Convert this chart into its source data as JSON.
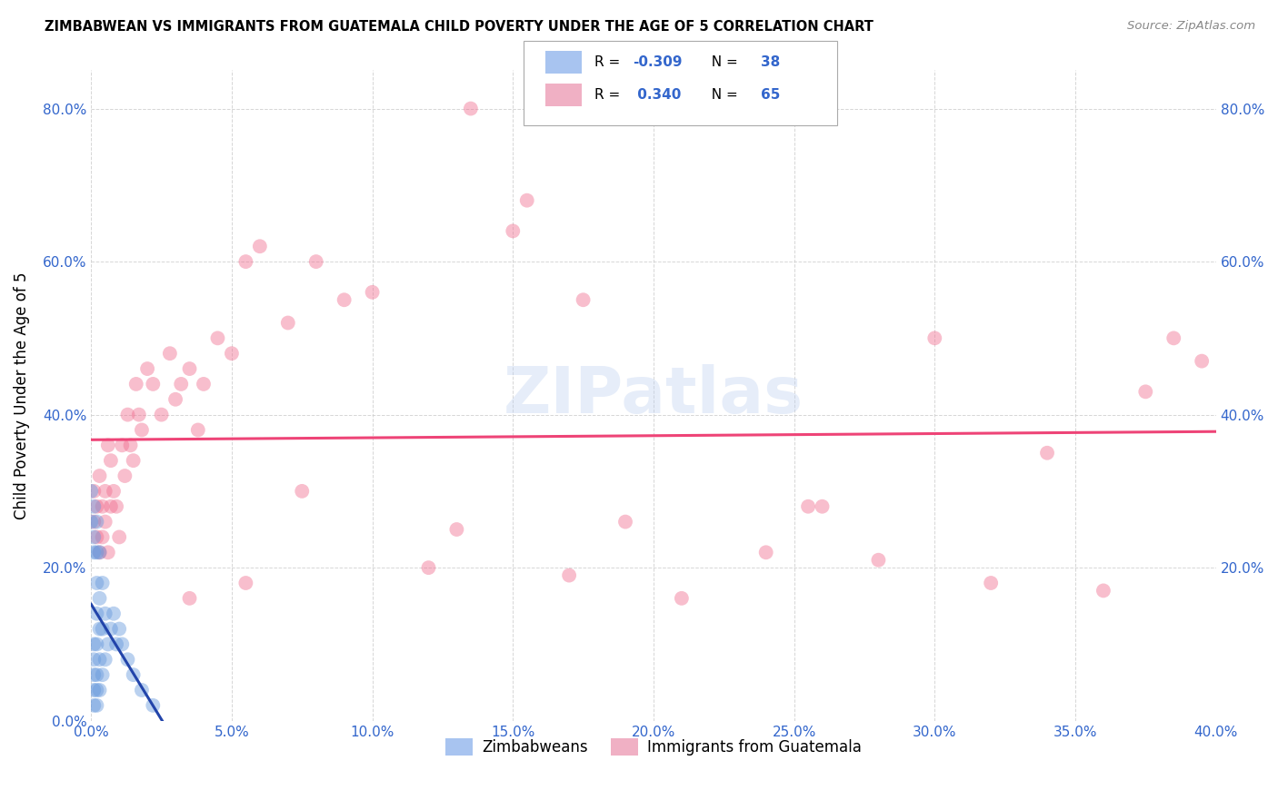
{
  "title": "ZIMBABWEAN VS IMMIGRANTS FROM GUATEMALA CHILD POVERTY UNDER THE AGE OF 5 CORRELATION CHART",
  "source": "Source: ZipAtlas.com",
  "ylabel": "Child Poverty Under the Age of 5",
  "xlim": [
    0.0,
    0.4
  ],
  "ylim": [
    0.0,
    0.85
  ],
  "xticks": [
    0.0,
    0.05,
    0.1,
    0.15,
    0.2,
    0.25,
    0.3,
    0.35,
    0.4
  ],
  "yticks": [
    0.0,
    0.2,
    0.4,
    0.6,
    0.8
  ],
  "xtick_labels": [
    "0.0%",
    "5.0%",
    "10.0%",
    "15.0%",
    "20.0%",
    "25.0%",
    "30.0%",
    "35.0%",
    "40.0%"
  ],
  "ytick_labels_left": [
    "0.0%",
    "20.0%",
    "40.0%",
    "60.0%",
    "80.0%"
  ],
  "ytick_labels_right": [
    "20.0%",
    "40.0%",
    "60.0%",
    "80.0%"
  ],
  "zim_color": "#6699dd",
  "guat_color": "#f07090",
  "zim_line_color": "#2244aa",
  "guat_line_color": "#ee4477",
  "watermark_text": "ZIPatlas",
  "background_color": "#ffffff",
  "grid_color": "#cccccc",
  "legend_labels_bottom": [
    "Zimbabweans",
    "Immigrants from Guatemala"
  ],
  "legend_blue_patch": "#a8c4f0",
  "legend_pink_patch": "#f0b0c4",
  "zim_x": [
    0.0,
    0.0,
    0.001,
    0.001,
    0.001,
    0.001,
    0.001,
    0.001,
    0.001,
    0.001,
    0.002,
    0.002,
    0.002,
    0.002,
    0.002,
    0.002,
    0.002,
    0.002,
    0.003,
    0.003,
    0.003,
    0.003,
    0.003,
    0.004,
    0.004,
    0.004,
    0.005,
    0.005,
    0.006,
    0.007,
    0.008,
    0.009,
    0.01,
    0.011,
    0.013,
    0.015,
    0.018,
    0.022
  ],
  "zim_y": [
    0.26,
    0.3,
    0.02,
    0.04,
    0.06,
    0.08,
    0.1,
    0.22,
    0.24,
    0.28,
    0.02,
    0.04,
    0.06,
    0.1,
    0.14,
    0.18,
    0.22,
    0.26,
    0.04,
    0.08,
    0.12,
    0.16,
    0.22,
    0.06,
    0.12,
    0.18,
    0.08,
    0.14,
    0.1,
    0.12,
    0.14,
    0.1,
    0.12,
    0.1,
    0.08,
    0.06,
    0.04,
    0.02
  ],
  "guat_x": [
    0.001,
    0.001,
    0.002,
    0.002,
    0.003,
    0.003,
    0.004,
    0.004,
    0.005,
    0.005,
    0.006,
    0.006,
    0.007,
    0.007,
    0.008,
    0.009,
    0.01,
    0.011,
    0.012,
    0.013,
    0.014,
    0.015,
    0.016,
    0.017,
    0.018,
    0.02,
    0.022,
    0.025,
    0.028,
    0.03,
    0.032,
    0.035,
    0.038,
    0.04,
    0.045,
    0.05,
    0.055,
    0.06,
    0.07,
    0.08,
    0.09,
    0.1,
    0.12,
    0.13,
    0.15,
    0.17,
    0.19,
    0.21,
    0.24,
    0.26,
    0.28,
    0.3,
    0.32,
    0.34,
    0.36,
    0.375,
    0.385,
    0.395,
    0.255,
    0.175,
    0.155,
    0.135,
    0.075,
    0.055,
    0.035
  ],
  "guat_y": [
    0.26,
    0.3,
    0.24,
    0.28,
    0.22,
    0.32,
    0.24,
    0.28,
    0.26,
    0.3,
    0.22,
    0.36,
    0.28,
    0.34,
    0.3,
    0.28,
    0.24,
    0.36,
    0.32,
    0.4,
    0.36,
    0.34,
    0.44,
    0.4,
    0.38,
    0.46,
    0.44,
    0.4,
    0.48,
    0.42,
    0.44,
    0.46,
    0.38,
    0.44,
    0.5,
    0.48,
    0.6,
    0.62,
    0.52,
    0.6,
    0.55,
    0.56,
    0.2,
    0.25,
    0.64,
    0.19,
    0.26,
    0.16,
    0.22,
    0.28,
    0.21,
    0.5,
    0.18,
    0.35,
    0.17,
    0.43,
    0.5,
    0.47,
    0.28,
    0.55,
    0.68,
    0.8,
    0.3,
    0.18,
    0.16
  ]
}
